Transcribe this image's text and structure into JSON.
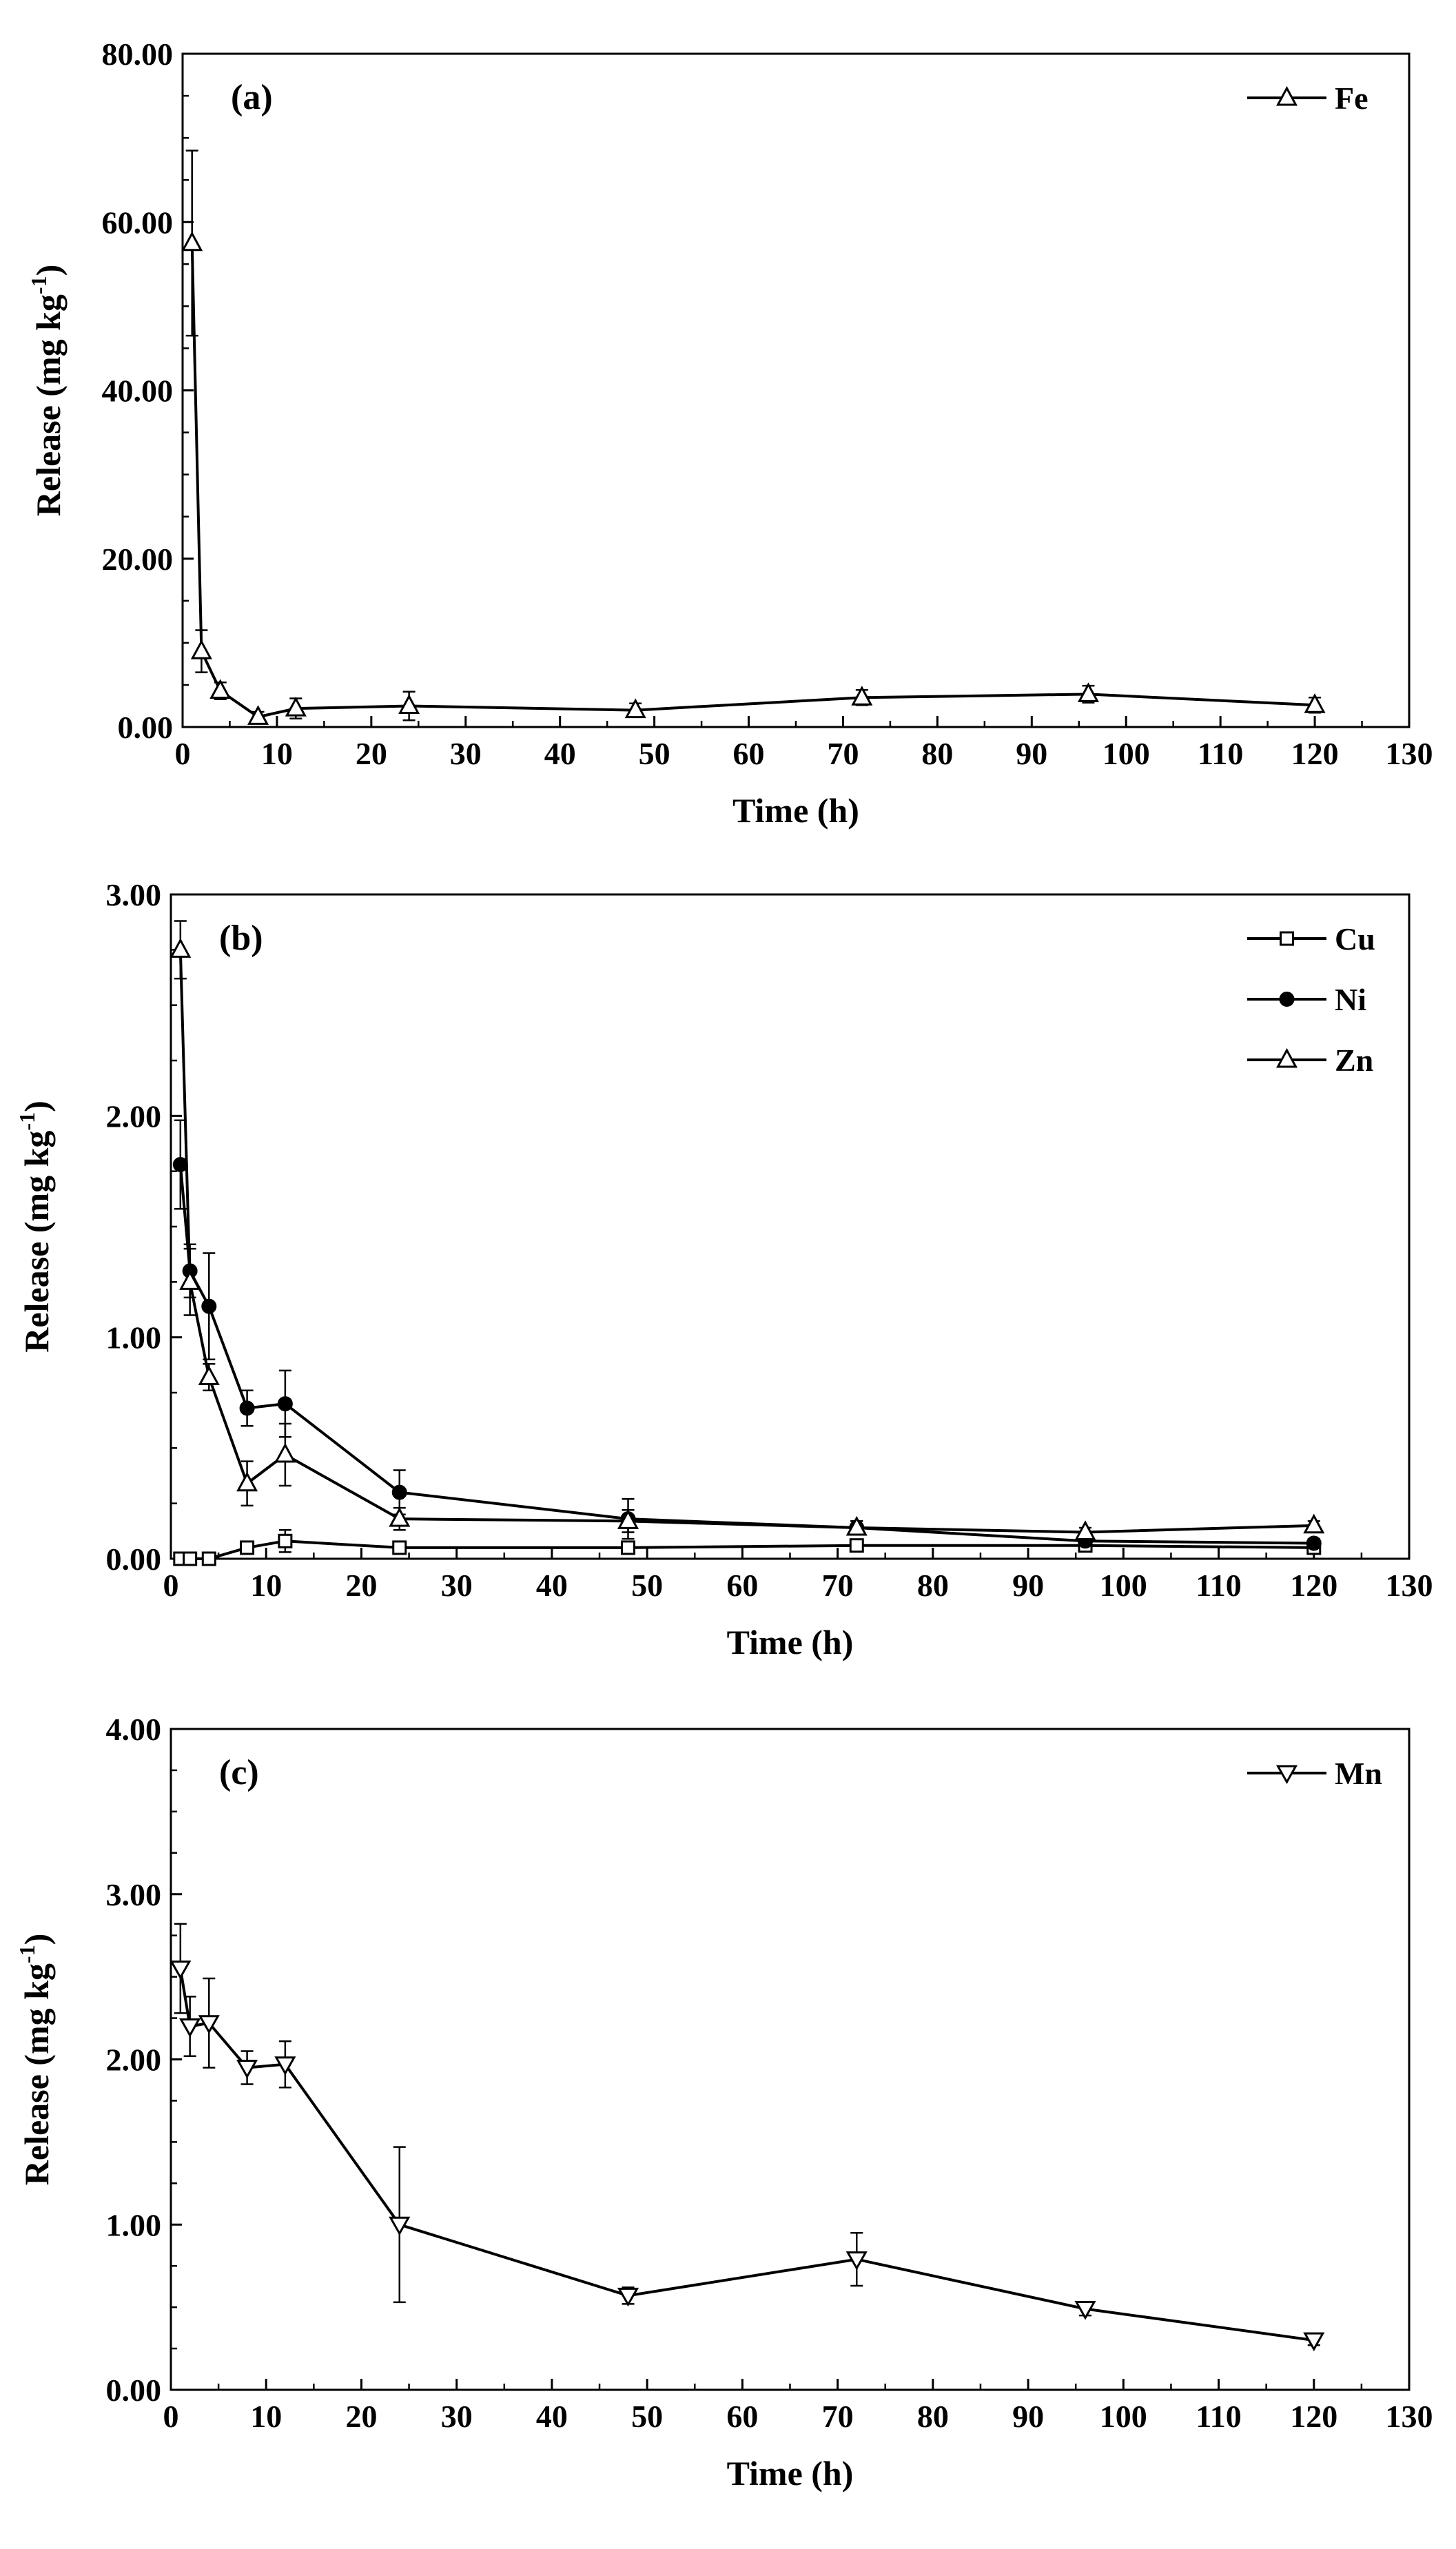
{
  "chart_data": [
    {
      "type": "line",
      "panel_label": "(a)",
      "xlabel": "Time (h)",
      "ylabel": "Release (mg kg",
      "ylabel_sup": "-1",
      "ylabel_end": ")",
      "xlim": [
        0,
        130
      ],
      "ylim": [
        0,
        80
      ],
      "x_ticks": [
        0,
        10,
        20,
        30,
        40,
        50,
        60,
        70,
        80,
        90,
        100,
        110,
        120,
        130
      ],
      "x_tick_labels": [
        "0",
        "10",
        "20",
        "30",
        "40",
        "50",
        "60",
        "70",
        "80",
        "90",
        "100",
        "110",
        "120",
        "130"
      ],
      "y_ticks": [
        0,
        20,
        40,
        60,
        80
      ],
      "y_tick_labels": [
        "0.00",
        "20.00",
        "40.00",
        "60.00",
        "80.00"
      ],
      "legend_position": "top-right",
      "series": [
        {
          "name": "Fe",
          "marker": "triangle-up",
          "x": [
            1,
            2,
            4,
            8,
            12,
            24,
            48,
            72,
            96,
            120
          ],
          "values": [
            57.5,
            9.0,
            4.3,
            1.2,
            2.2,
            2.5,
            2.0,
            3.5,
            3.9,
            2.6
          ],
          "errors": [
            11.0,
            2.5,
            1.0,
            0.6,
            1.2,
            1.7,
            0.8,
            0.9,
            1.0,
            0.9
          ]
        }
      ]
    },
    {
      "type": "line",
      "panel_label": "(b)",
      "xlabel": "Time (h)",
      "ylabel": "Release (mg kg",
      "ylabel_sup": "-1",
      "ylabel_end": ")",
      "xlim": [
        0,
        130
      ],
      "ylim": [
        0,
        3
      ],
      "x_ticks": [
        0,
        10,
        20,
        30,
        40,
        50,
        60,
        70,
        80,
        90,
        100,
        110,
        120,
        130
      ],
      "x_tick_labels": [
        "0",
        "10",
        "20",
        "30",
        "40",
        "50",
        "60",
        "70",
        "80",
        "90",
        "100",
        "110",
        "120",
        "130"
      ],
      "y_ticks": [
        0,
        1,
        2,
        3
      ],
      "y_tick_labels": [
        "0.00",
        "1.00",
        "2.00",
        "3.00"
      ],
      "legend_position": "top-right",
      "series": [
        {
          "name": "Cu",
          "marker": "square",
          "x": [
            1,
            2,
            4,
            8,
            12,
            24,
            48,
            72,
            96,
            120
          ],
          "values": [
            0.0,
            0.0,
            0.0,
            0.05,
            0.08,
            0.05,
            0.05,
            0.06,
            0.06,
            0.05
          ],
          "errors": [
            0.0,
            0.0,
            0.0,
            0.02,
            0.05,
            0.02,
            0.02,
            0.02,
            0.02,
            0.02
          ]
        },
        {
          "name": "Ni",
          "marker": "circle-filled",
          "x": [
            1,
            2,
            4,
            8,
            12,
            24,
            48,
            72,
            96,
            120
          ],
          "values": [
            1.78,
            1.3,
            1.14,
            0.68,
            0.7,
            0.3,
            0.18,
            0.14,
            0.08,
            0.07
          ],
          "errors": [
            0.2,
            0.12,
            0.24,
            0.08,
            0.15,
            0.1,
            0.09,
            0.03,
            0.02,
            0.02
          ]
        },
        {
          "name": "Zn",
          "marker": "triangle-up",
          "x": [
            1,
            2,
            4,
            8,
            12,
            24,
            48,
            72,
            96,
            120
          ],
          "values": [
            2.75,
            1.25,
            0.82,
            0.34,
            0.47,
            0.18,
            0.17,
            0.14,
            0.12,
            0.15
          ],
          "errors": [
            0.13,
            0.15,
            0.06,
            0.1,
            0.14,
            0.05,
            0.05,
            0.03,
            0.02,
            0.02
          ]
        }
      ]
    },
    {
      "type": "line",
      "panel_label": "(c)",
      "xlabel": "Time (h)",
      "ylabel": "Release (mg kg",
      "ylabel_sup": "-1",
      "ylabel_end": ")",
      "xlim": [
        0,
        130
      ],
      "ylim": [
        0,
        4
      ],
      "x_ticks": [
        0,
        10,
        20,
        30,
        40,
        50,
        60,
        70,
        80,
        90,
        100,
        110,
        120,
        130
      ],
      "x_tick_labels": [
        "0",
        "10",
        "20",
        "30",
        "40",
        "50",
        "60",
        "70",
        "80",
        "90",
        "100",
        "110",
        "120",
        "130"
      ],
      "y_ticks": [
        0,
        1,
        2,
        3,
        4
      ],
      "y_tick_labels": [
        "0.00",
        "1.00",
        "2.00",
        "3.00",
        "4.00"
      ],
      "legend_position": "top-right",
      "series": [
        {
          "name": "Mn",
          "marker": "triangle-down",
          "x": [
            1,
            2,
            4,
            8,
            12,
            24,
            48,
            72,
            96,
            120
          ],
          "values": [
            2.55,
            2.2,
            2.22,
            1.95,
            1.97,
            1.0,
            0.57,
            0.79,
            0.49,
            0.3
          ],
          "errors": [
            0.27,
            0.18,
            0.27,
            0.1,
            0.14,
            0.47,
            0.05,
            0.16,
            0.04,
            0.03
          ]
        }
      ]
    }
  ]
}
